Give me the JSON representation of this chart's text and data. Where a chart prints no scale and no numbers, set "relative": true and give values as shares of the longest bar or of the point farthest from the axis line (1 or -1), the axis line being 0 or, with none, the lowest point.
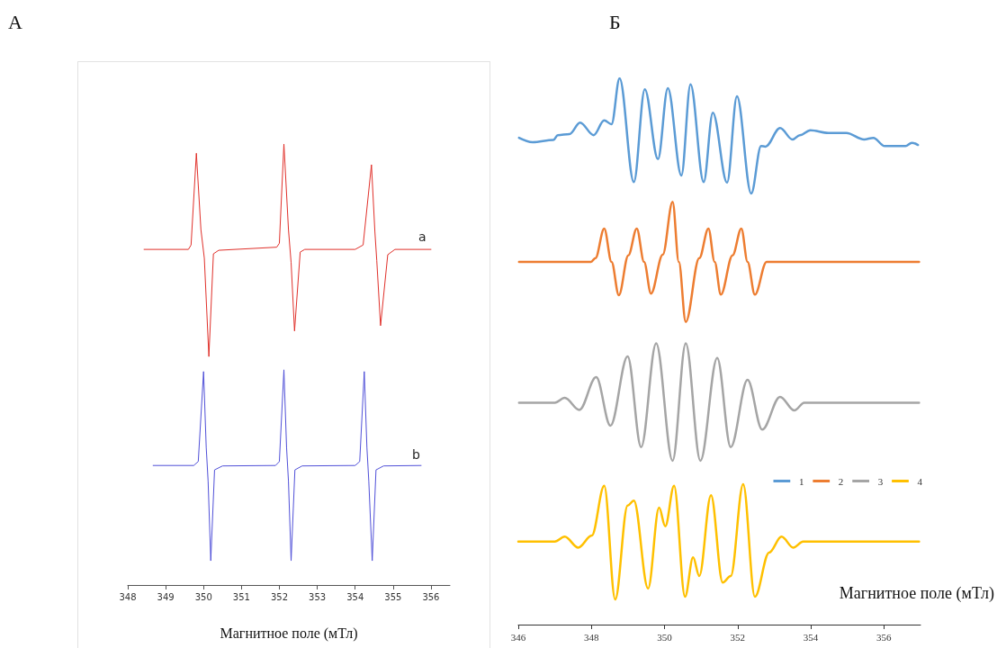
{
  "chart_data": [
    {
      "type": "line",
      "title": "А",
      "xlabel": "Магнитное поле (мТл)",
      "relative": true,
      "tick_labels": "x",
      "marker": "none",
      "legend": false,
      "xlim": [
        348,
        356.5
      ],
      "xticks": [
        348,
        349,
        350,
        351,
        352,
        353,
        354,
        355,
        356
      ],
      "series": [
        {
          "name": "a",
          "color": "#e0302a",
          "x": [
            348.43,
            349.6,
            349.67,
            349.81,
            349.93,
            350.02,
            350.14,
            350.26,
            350.4,
            351.93,
            352.0,
            352.12,
            352.24,
            352.31,
            352.4,
            352.55,
            352.67,
            354.0,
            354.21,
            354.43,
            354.52,
            354.57,
            354.67,
            354.86,
            355.05,
            356.0
          ],
          "values": [
            0.761,
            0.761,
            0.771,
            0.979,
            0.806,
            0.741,
            0.518,
            0.751,
            0.759,
            0.766,
            0.775,
            1.0,
            0.806,
            0.731,
            0.576,
            0.755,
            0.761,
            0.761,
            0.771,
            0.953,
            0.802,
            0.736,
            0.588,
            0.749,
            0.761,
            0.761
          ]
        },
        {
          "name": "b",
          "color": "#5050d8",
          "x": [
            348.67,
            349.74,
            349.86,
            350.0,
            350.07,
            350.12,
            350.19,
            350.29,
            350.5,
            351.9,
            352.0,
            352.12,
            352.19,
            352.24,
            352.31,
            352.41,
            352.6,
            354.0,
            354.12,
            354.24,
            354.31,
            354.36,
            354.45,
            354.55,
            354.75,
            355.74
          ],
          "values": [
            0.271,
            0.271,
            0.28,
            0.484,
            0.312,
            0.235,
            0.055,
            0.261,
            0.27,
            0.271,
            0.28,
            0.488,
            0.312,
            0.235,
            0.055,
            0.261,
            0.27,
            0.271,
            0.28,
            0.484,
            0.312,
            0.235,
            0.055,
            0.261,
            0.27,
            0.271
          ]
        }
      ]
    },
    {
      "type": "line",
      "title": "Б",
      "xlabel": "Магнитное поле (мТл)",
      "relative": true,
      "tick_labels": "x",
      "marker": "none",
      "legend": "bottom right",
      "xlim": [
        346,
        357
      ],
      "xticks": [
        346,
        348,
        350,
        352,
        354,
        356
      ],
      "series": [
        {
          "name": "1",
          "color": "#5b9bd5",
          "x": [
            346.02,
            346.39,
            346.96,
            347.08,
            347.4,
            347.69,
            348.06,
            348.35,
            348.55,
            348.77,
            349.16,
            349.46,
            349.82,
            350.09,
            350.46,
            350.71,
            351.07,
            351.32,
            351.71,
            351.98,
            352.37,
            352.64,
            352.76,
            353.16,
            353.5,
            353.7,
            353.99,
            354.48,
            354.97,
            355.46,
            355.71,
            356.02,
            356.59,
            356.76,
            356.93
          ],
          "values": [
            0.891,
            0.883,
            0.887,
            0.896,
            0.898,
            0.919,
            0.896,
            0.923,
            0.916,
            1.0,
            0.81,
            0.98,
            0.852,
            0.982,
            0.822,
            0.989,
            0.81,
            0.937,
            0.809,
            0.967,
            0.789,
            0.876,
            0.875,
            0.909,
            0.888,
            0.896,
            0.905,
            0.9,
            0.9,
            0.888,
            0.891,
            0.876,
            0.876,
            0.882,
            0.878
          ]
        },
        {
          "name": "2",
          "color": "#ed7d31",
          "x": [
            346.02,
            347.99,
            348.11,
            348.35,
            348.55,
            348.75,
            349.01,
            349.24,
            349.44,
            349.63,
            349.95,
            350.22,
            350.39,
            350.58,
            350.95,
            351.2,
            351.37,
            351.54,
            351.86,
            352.1,
            352.27,
            352.47,
            352.79,
            356.96
          ],
          "values": [
            0.664,
            0.664,
            0.671,
            0.725,
            0.664,
            0.603,
            0.676,
            0.725,
            0.664,
            0.606,
            0.677,
            0.774,
            0.664,
            0.554,
            0.671,
            0.725,
            0.664,
            0.604,
            0.676,
            0.725,
            0.664,
            0.604,
            0.664,
            0.664
          ]
        },
        {
          "name": "3",
          "color": "#a5a5a5",
          "x": [
            346.02,
            347.0,
            347.27,
            347.67,
            348.13,
            348.52,
            348.99,
            349.36,
            349.77,
            350.22,
            350.58,
            350.98,
            351.44,
            351.81,
            352.27,
            352.67,
            353.16,
            353.55,
            353.82,
            356.96
          ],
          "values": [
            0.406,
            0.406,
            0.415,
            0.393,
            0.453,
            0.364,
            0.491,
            0.325,
            0.515,
            0.3,
            0.515,
            0.3,
            0.488,
            0.325,
            0.448,
            0.357,
            0.417,
            0.392,
            0.406,
            0.406
          ]
        },
        {
          "name": "4",
          "color": "#ffc000",
          "x": [
            346.0,
            347.0,
            347.27,
            347.64,
            348.01,
            348.35,
            348.65,
            348.99,
            349.16,
            349.55,
            349.85,
            350.02,
            350.26,
            350.56,
            350.78,
            350.95,
            351.27,
            351.59,
            351.81,
            352.15,
            352.47,
            352.86,
            353.2,
            353.52,
            353.79,
            356.96
          ],
          "values": [
            0.152,
            0.152,
            0.161,
            0.141,
            0.163,
            0.254,
            0.046,
            0.218,
            0.227,
            0.066,
            0.214,
            0.18,
            0.254,
            0.051,
            0.123,
            0.089,
            0.237,
            0.077,
            0.089,
            0.257,
            0.051,
            0.132,
            0.161,
            0.141,
            0.152,
            0.152
          ]
        }
      ]
    }
  ]
}
